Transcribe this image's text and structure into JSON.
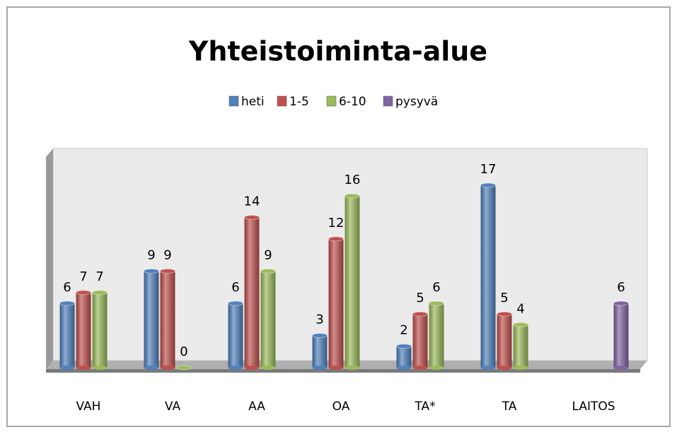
{
  "chart_data": {
    "type": "bar",
    "title": "Yhteistoiminta-alue",
    "categories": [
      "VAH",
      "VA",
      "AA",
      "OA",
      "TA*",
      "TA",
      "LAITOS"
    ],
    "series": [
      {
        "name": "heti",
        "color": "#4f81bd",
        "values": [
          6,
          9,
          6,
          3,
          2,
          17,
          null
        ]
      },
      {
        "name": "1-5",
        "color": "#c0504d",
        "values": [
          7,
          9,
          14,
          12,
          5,
          5,
          null
        ]
      },
      {
        "name": "6-10",
        "color": "#9bbb59",
        "values": [
          7,
          0,
          9,
          16,
          6,
          4,
          null
        ]
      },
      {
        "name": "pysyvä",
        "color": "#8064a2",
        "values": [
          null,
          null,
          null,
          null,
          null,
          null,
          6
        ]
      }
    ],
    "legend": "top"
  }
}
